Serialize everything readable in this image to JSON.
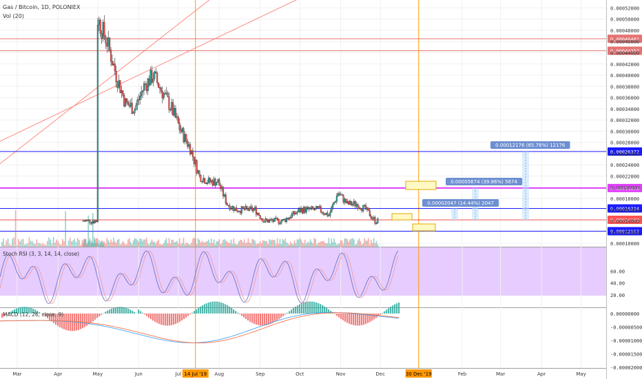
{
  "header": {
    "symbol_title": "Gas / Bitcoin, 1D, POLONIEX",
    "volume_label": "Vol (20)"
  },
  "price_axis": {
    "ticks": [
      "0.00052000",
      "0.00050000",
      "0.00048000",
      "0.00046000",
      "0.00044000",
      "0.00042000",
      "0.00040000",
      "0.00038000",
      "0.00036000",
      "0.00034000",
      "0.00032000",
      "0.00030000",
      "0.00028000",
      "0.00026000",
      "0.00024000",
      "0.00022000",
      "0.00020000",
      "0.00018000",
      "0.00016000",
      "0.00014000",
      "0.00012000",
      "0.00010000"
    ],
    "ylim": [
      9.4e-05,
      0.000534
    ]
  },
  "level_lines": [
    {
      "label": "0.00046481",
      "value": 0.00046481,
      "color": "#e57373"
    },
    {
      "label": "0.00044357",
      "value": 0.00044357,
      "color": "#e57373"
    },
    {
      "label": "0.00026372",
      "value": 0.00026372,
      "color": "#1a1aff"
    },
    {
      "label": "0.00019858",
      "value": 0.00019858,
      "color": "#e040fb"
    },
    {
      "label": "0.00016224",
      "value": 0.00016224,
      "color": "#1a1aff"
    },
    {
      "label": "0.00014192",
      "value": 0.00014192,
      "color": "#ff5252"
    },
    {
      "label": "0.00012163",
      "value": 0.00012163,
      "color": "#1a1aff"
    }
  ],
  "measure_labels": [
    {
      "text": "0.00012176 (85.76%) 12176"
    },
    {
      "text": "0.00005674 (39.86%) 5674"
    },
    {
      "text": "0.00002047 (14.44%) 2047"
    }
  ],
  "stoch_panel": {
    "title": "Stoch RSI (3, 3, 14, 14, close)",
    "ticks": [
      "60.00",
      "40.00",
      "20.00"
    ]
  },
  "macd_panel": {
    "title": "MACD (12, 26, close, 9)",
    "ticks": [
      "0.00000000",
      "-0.00000500",
      "-0.00001000",
      "-0.00001500",
      "-0.00002000"
    ]
  },
  "time_axis": {
    "months": [
      "Mar",
      "Apr",
      "May",
      "Jun",
      "Jul",
      "Aug",
      "Sep",
      "Oct",
      "Nov",
      "Dec",
      "Feb",
      "Mar",
      "Apr",
      "May"
    ],
    "highlight_dates": [
      "14 Jul '19",
      "30 Dec '19"
    ]
  },
  "colors": {
    "bull": "#26a69a",
    "bear": "#ef5350",
    "stoch_band": "#e6ccff",
    "vertical_marker": "#ff9800",
    "trend_channel": "#ff8a80",
    "macd_line": "#42a5f5",
    "signal_line": "#ff7043",
    "box_fill": "#fff9c4",
    "box_stroke": "#e0a800"
  },
  "chart_data": {
    "type": "candlestick",
    "title": "Gas / Bitcoin, 1D, POLONIEX",
    "x_type": "date",
    "x": [
      "2019-05-01",
      "2019-05-08",
      "2019-05-15",
      "2019-05-22",
      "2019-05-29",
      "2019-06-05",
      "2019-06-12",
      "2019-06-19",
      "2019-06-26",
      "2019-07-03",
      "2019-07-10",
      "2019-07-17",
      "2019-07-24",
      "2019-07-31",
      "2019-08-07",
      "2019-08-14",
      "2019-08-21",
      "2019-08-28",
      "2019-09-04",
      "2019-09-11",
      "2019-09-18",
      "2019-09-25",
      "2019-10-02",
      "2019-10-09",
      "2019-10-16",
      "2019-10-23",
      "2019-10-30",
      "2019-11-06",
      "2019-11-13",
      "2019-11-20",
      "2019-11-27"
    ],
    "close": [
      0.0005,
      0.00046,
      0.0004,
      0.00035,
      0.00034,
      0.00038,
      0.0004,
      0.00037,
      0.00034,
      0.0003,
      0.00027,
      0.00022,
      0.00021,
      0.00021,
      0.00017,
      0.00016,
      0.00016,
      0.00016,
      0.00014,
      0.00014,
      0.00014,
      0.00015,
      0.00016,
      0.00016,
      0.00016,
      0.00015,
      0.00019,
      0.00017,
      0.00017,
      0.00016,
      0.00014
    ],
    "horizontal_levels": [
      0.00046481,
      0.00044357,
      0.00026372,
      0.00019858,
      0.00016224,
      0.00014192,
      0.00012163
    ],
    "vertical_markers": [
      "2019-07-14",
      "2019-12-30"
    ],
    "ylim": [
      9.4e-05,
      0.000534
    ],
    "grid": true,
    "subpanels": [
      "Vol (20)",
      "Stoch RSI (3, 3, 14, 14, close)",
      "MACD (12, 26, close, 9)"
    ]
  }
}
